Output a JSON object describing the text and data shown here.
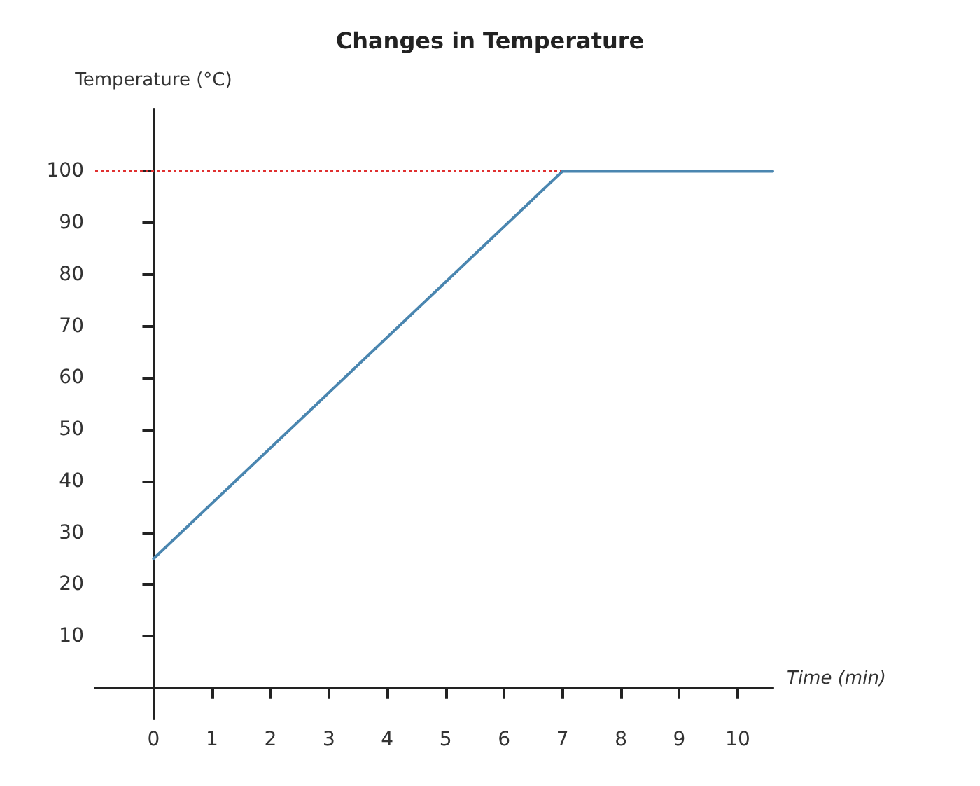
{
  "chart_data": {
    "type": "line",
    "title": "Changes in Temperature",
    "xlabel": "Time (min)",
    "ylabel": "Temperature (°C)",
    "x": [
      0,
      7,
      10.6
    ],
    "series": [
      {
        "color": "#4a86b0",
        "values": [
          25,
          100,
          100
        ]
      }
    ],
    "xlim": [
      -1,
      10.6
    ],
    "ylim": [
      -6,
      112
    ],
    "xticks": [
      0,
      1,
      2,
      3,
      4,
      5,
      6,
      7,
      8,
      9,
      10
    ],
    "yticks": [
      10,
      20,
      30,
      40,
      50,
      60,
      70,
      80,
      90,
      100
    ],
    "ref_lines": [
      {
        "axis": "y",
        "value": 100,
        "color": "#e03030",
        "line_style": "dotted"
      }
    ],
    "grid": false,
    "marker": "none",
    "line_style": "solid"
  }
}
